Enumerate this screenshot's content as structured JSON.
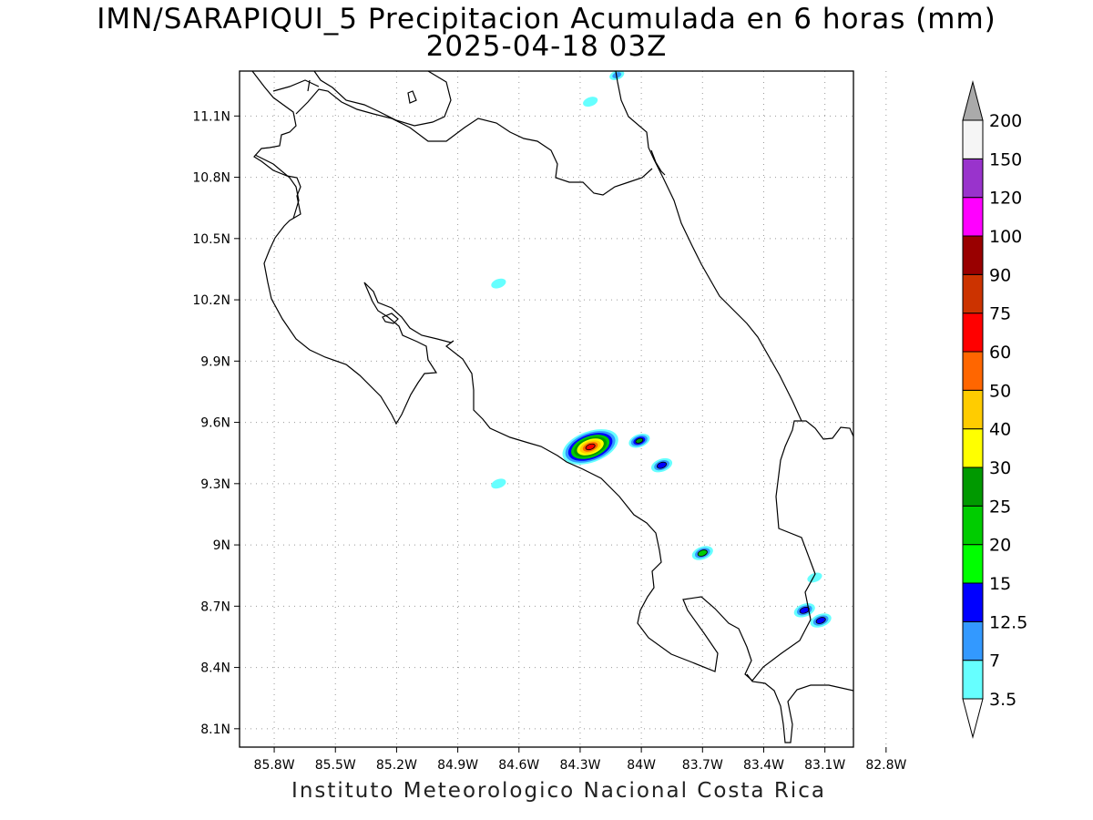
{
  "title_line1": "IMN/SARAPIQUI_5 Precipitacion Acumulada en 6 horas (mm)",
  "title_line2": "2025-04-18 03Z",
  "credit": "Instituto Meteorologico Nacional Costa Rica",
  "map": {
    "lon_range": [
      -85.97,
      -82.96
    ],
    "lat_range": [
      8.01,
      11.32
    ],
    "lon_ticks": [
      "85.8W",
      "85.5W",
      "85.2W",
      "84.9W",
      "84.6W",
      "84.3W",
      "84W",
      "83.7W",
      "83.4W",
      "83.1W",
      "82.8W"
    ],
    "lon_tick_values": [
      -85.8,
      -85.5,
      -85.2,
      -84.9,
      -84.6,
      -84.3,
      -84.0,
      -83.7,
      -83.4,
      -83.1,
      -82.8
    ],
    "lat_ticks": [
      "11.1N",
      "10.8N",
      "10.5N",
      "10.2N",
      "9.9N",
      "9.6N",
      "9.3N",
      "9N",
      "8.7N",
      "8.4N",
      "8.1N"
    ],
    "lat_tick_values": [
      11.1,
      10.8,
      10.5,
      10.2,
      9.9,
      9.6,
      9.3,
      9.0,
      8.7,
      8.4,
      8.1
    ],
    "grid": "dotted"
  },
  "colorbar": {
    "levels": [
      "3.5",
      "7",
      "12.5",
      "15",
      "20",
      "25",
      "30",
      "40",
      "50",
      "60",
      "75",
      "90",
      "100",
      "120",
      "150",
      "200"
    ],
    "colors": [
      "#66ffff",
      "#3399ff",
      "#0000ff",
      "#00ff00",
      "#00cc00",
      "#009900",
      "#ffff00",
      "#ffcc00",
      "#ff6600",
      "#ff0000",
      "#cc3300",
      "#990000",
      "#ff00ff",
      "#9933cc",
      "#f5f5f5",
      "#aaaaaa"
    ],
    "min_triangle_color": "#ffffff",
    "max_triangle_color": "#aaaaaa"
  },
  "precip_cells": [
    {
      "lon": -84.25,
      "lat": 9.48,
      "levels": [
        "3.5",
        "7",
        "12.5",
        "20",
        "25",
        "30",
        "40",
        "50",
        "60"
      ],
      "note_color_center": "#ff0000"
    },
    {
      "lon": -84.01,
      "lat": 9.51,
      "levels": [
        "3.5",
        "7",
        "12.5",
        "25"
      ]
    },
    {
      "lon": -83.9,
      "lat": 9.39,
      "levels": [
        "3.5",
        "7",
        "12.5"
      ]
    },
    {
      "lon": -83.7,
      "lat": 8.96,
      "levels": [
        "3.5",
        "7",
        "20"
      ]
    },
    {
      "lon": -83.2,
      "lat": 8.68,
      "levels": [
        "3.5",
        "7",
        "12.5"
      ]
    },
    {
      "lon": -83.12,
      "lat": 8.63,
      "levels": [
        "3.5",
        "7",
        "12.5"
      ]
    },
    {
      "lon": -84.12,
      "lat": 11.3,
      "levels": [
        "3.5",
        "7"
      ]
    },
    {
      "lon": -84.25,
      "lat": 11.17,
      "levels": [
        "3.5"
      ]
    },
    {
      "lon": -84.7,
      "lat": 9.3,
      "levels": [
        "3.5"
      ]
    },
    {
      "lon": -84.7,
      "lat": 10.28,
      "levels": [
        "3.5"
      ]
    },
    {
      "lon": -83.15,
      "lat": 8.84,
      "levels": [
        "3.5"
      ]
    }
  ]
}
